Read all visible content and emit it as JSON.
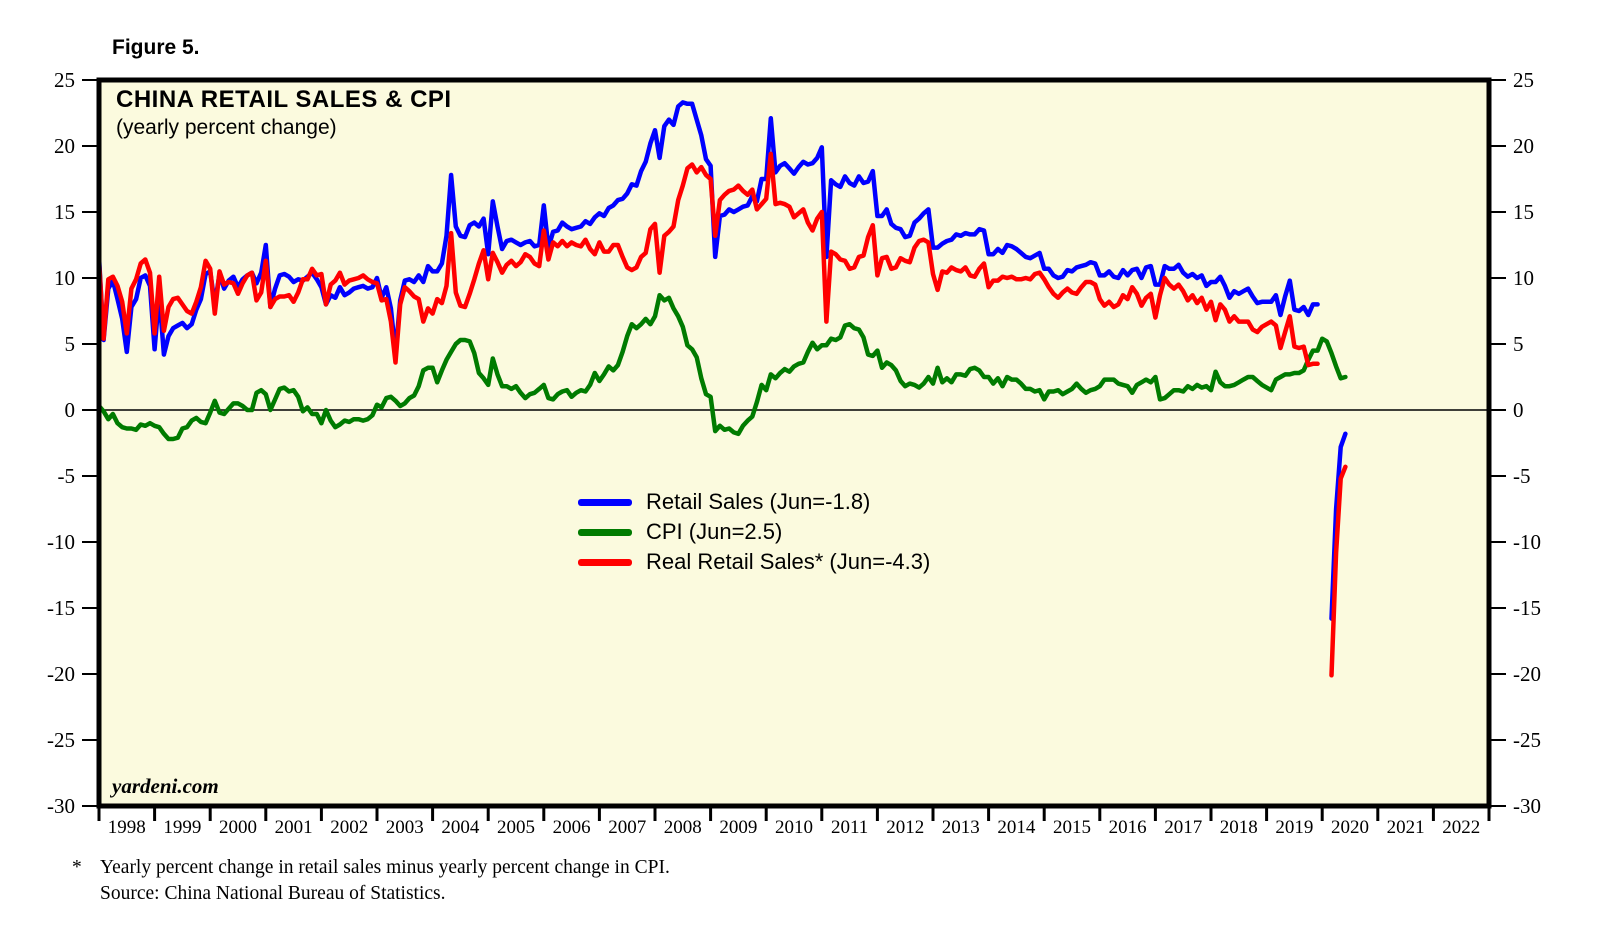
{
  "figure_label": "Figure 5.",
  "header": {
    "title": "CHINA RETAIL SALES & CPI",
    "subtitle": "(yearly percent change)"
  },
  "watermark": "yardeni.com",
  "footnote": {
    "marker": "*",
    "line1": "Yearly percent change in retail sales minus yearly percent change in CPI.",
    "line2": "Source: China National Bureau of Statistics."
  },
  "legend": [
    {
      "label": "Retail Sales (Jun=-1.8)",
      "color": "#0000ff"
    },
    {
      "label": "CPI (Jun=2.5)",
      "color": "#007b00"
    },
    {
      "label": "Real Retail Sales* (Jun=-4.3)",
      "color": "#ff0000"
    }
  ],
  "chart_data": {
    "type": "line",
    "title": "CHINA RETAIL SALES & CPI",
    "subtitle": "(yearly percent change)",
    "plot_bg": "#fbfade",
    "zero_line": true,
    "frequency": "monthly",
    "start": "1998-01",
    "end": "2020-06",
    "x_axis": {
      "start_year": 1998,
      "years_span": 25,
      "labels": [
        "1998",
        "1999",
        "2000",
        "2001",
        "2002",
        "2003",
        "2004",
        "2005",
        "2006",
        "2007",
        "2008",
        "2009",
        "2010",
        "2011",
        "2012",
        "2013",
        "2014",
        "2015",
        "2016",
        "2017",
        "2018",
        "2019",
        "2020",
        "2021",
        "2022"
      ]
    },
    "y_axis": {
      "min": -30,
      "max": 25,
      "ticks": [
        25,
        20,
        15,
        10,
        5,
        0,
        -5,
        -10,
        -15,
        -20,
        -25,
        -30
      ],
      "sides": "both"
    },
    "series": [
      {
        "name": "Retail Sales",
        "legend": "Retail Sales (Jun=-1.8)",
        "color": "#0000ff",
        "latest": {
          "month": "Jun",
          "value": -1.8
        },
        "values": [
          11.6,
          5.3,
          9.2,
          9.8,
          8.4,
          6.9,
          4.4,
          7.8,
          8.4,
          10.0,
          10.2,
          9.4,
          4.6,
          8.8,
          4.2,
          5.6,
          6.2,
          6.4,
          6.6,
          6.2,
          6.5,
          7.6,
          8.4,
          10.3,
          10.5,
          8.0,
          10.3,
          9.2,
          9.8,
          10.1,
          9.3,
          9.9,
          10.2,
          10.4,
          9.6,
          10.4,
          12.5,
          7.8,
          9.2,
          10.2,
          10.3,
          10.1,
          9.7,
          9.9,
          9.8,
          10.1,
          10.4,
          9.9,
          9.3,
          8.0,
          8.7,
          8.5,
          9.3,
          8.7,
          8.9,
          9.2,
          9.3,
          9.4,
          9.2,
          9.3,
          10.0,
          8.5,
          9.3,
          7.7,
          4.3,
          8.3,
          9.8,
          9.9,
          9.7,
          10.2,
          9.7,
          10.9,
          10.5,
          10.5,
          11.1,
          13.2,
          17.8,
          13.9,
          13.2,
          13.1,
          14.0,
          14.2,
          13.9,
          14.5,
          11.8,
          15.8,
          13.9,
          12.2,
          12.8,
          12.9,
          12.7,
          12.5,
          12.7,
          12.8,
          12.4,
          12.5,
          15.5,
          12.3,
          13.5,
          13.6,
          14.2,
          13.9,
          13.7,
          13.8,
          13.9,
          14.3,
          14.1,
          14.6,
          14.9,
          14.7,
          15.3,
          15.5,
          15.9,
          16.0,
          16.4,
          17.1,
          17.0,
          18.1,
          18.8,
          20.2,
          21.2,
          19.1,
          21.5,
          22.0,
          21.6,
          23.0,
          23.3,
          23.2,
          23.2,
          22.0,
          20.8,
          19.0,
          18.5,
          11.6,
          14.7,
          14.8,
          15.2,
          15.0,
          15.2,
          15.4,
          15.5,
          16.2,
          15.8,
          17.5,
          17.5,
          22.1,
          18.0,
          18.5,
          18.7,
          18.3,
          17.9,
          18.4,
          18.8,
          18.6,
          18.7,
          19.1,
          19.9,
          11.6,
          17.4,
          17.1,
          16.9,
          17.7,
          17.2,
          17.0,
          17.7,
          17.2,
          17.3,
          18.1,
          14.7,
          14.7,
          15.2,
          14.1,
          13.8,
          13.7,
          13.1,
          13.2,
          14.2,
          14.5,
          14.9,
          15.2,
          12.3,
          12.3,
          12.6,
          12.8,
          12.9,
          13.3,
          13.2,
          13.4,
          13.3,
          13.3,
          13.7,
          13.6,
          11.8,
          11.8,
          12.2,
          11.9,
          12.5,
          12.4,
          12.2,
          11.9,
          11.6,
          11.5,
          11.7,
          11.9,
          10.7,
          10.7,
          10.2,
          10.0,
          10.1,
          10.6,
          10.5,
          10.8,
          10.9,
          11.0,
          11.2,
          11.1,
          10.2,
          10.2,
          10.5,
          10.1,
          10.0,
          10.6,
          10.2,
          10.6,
          10.7,
          10.0,
          10.8,
          10.9,
          9.5,
          9.5,
          10.9,
          10.7,
          10.7,
          11.0,
          10.4,
          10.1,
          10.3,
          10.0,
          10.2,
          9.4,
          9.7,
          9.7,
          10.1,
          9.4,
          8.5,
          9.0,
          8.8,
          9.0,
          9.2,
          8.6,
          8.1,
          8.2,
          8.2,
          8.2,
          8.7,
          7.2,
          8.6,
          9.8,
          7.6,
          7.5,
          7.8,
          7.2,
          8.0,
          8.0,
          null,
          null,
          -15.8,
          -7.5,
          -2.8,
          -1.8
        ]
      },
      {
        "name": "CPI",
        "legend": "CPI (Jun=2.5)",
        "color": "#007b00",
        "latest": {
          "month": "Jun",
          "value": 2.5
        },
        "values": [
          0.3,
          -0.1,
          -0.7,
          -0.3,
          -1.0,
          -1.3,
          -1.4,
          -1.4,
          -1.5,
          -1.1,
          -1.2,
          -1.0,
          -1.2,
          -1.3,
          -1.8,
          -2.2,
          -2.2,
          -2.1,
          -1.4,
          -1.3,
          -0.8,
          -0.6,
          -0.9,
          -1.0,
          -0.2,
          0.7,
          -0.2,
          -0.3,
          0.1,
          0.5,
          0.5,
          0.3,
          0.0,
          0.0,
          1.3,
          1.5,
          1.2,
          0.0,
          0.8,
          1.6,
          1.7,
          1.4,
          1.5,
          1.0,
          -0.1,
          0.2,
          -0.3,
          -0.3,
          -1.0,
          0.0,
          -0.8,
          -1.3,
          -1.1,
          -0.8,
          -0.9,
          -0.7,
          -0.7,
          -0.8,
          -0.7,
          -0.4,
          0.4,
          0.2,
          0.9,
          1.0,
          0.7,
          0.3,
          0.5,
          0.9,
          1.1,
          1.8,
          3.0,
          3.2,
          3.2,
          2.1,
          3.0,
          3.8,
          4.4,
          5.0,
          5.3,
          5.3,
          5.2,
          4.3,
          2.8,
          2.4,
          1.9,
          3.9,
          2.7,
          1.8,
          1.8,
          1.6,
          1.8,
          1.3,
          0.9,
          1.2,
          1.3,
          1.6,
          1.9,
          0.9,
          0.8,
          1.2,
          1.4,
          1.5,
          1.0,
          1.3,
          1.5,
          1.4,
          1.9,
          2.8,
          2.2,
          2.7,
          3.3,
          3.0,
          3.4,
          4.4,
          5.6,
          6.5,
          6.2,
          6.5,
          6.9,
          6.5,
          7.1,
          8.7,
          8.3,
          8.5,
          7.7,
          7.1,
          6.3,
          4.9,
          4.6,
          4.0,
          2.4,
          1.2,
          1.0,
          -1.6,
          -1.2,
          -1.5,
          -1.4,
          -1.7,
          -1.8,
          -1.2,
          -0.8,
          -0.5,
          0.6,
          1.9,
          1.5,
          2.7,
          2.4,
          2.8,
          3.1,
          2.9,
          3.3,
          3.5,
          3.6,
          4.4,
          5.1,
          4.6,
          4.9,
          4.9,
          5.4,
          5.3,
          5.5,
          6.4,
          6.5,
          6.2,
          6.1,
          5.5,
          4.2,
          4.1,
          4.5,
          3.2,
          3.6,
          3.4,
          3.0,
          2.2,
          1.8,
          2.0,
          1.9,
          1.7,
          2.0,
          2.5,
          2.0,
          3.2,
          2.1,
          2.4,
          2.1,
          2.7,
          2.7,
          2.6,
          3.1,
          3.2,
          3.0,
          2.5,
          2.5,
          2.0,
          2.4,
          1.8,
          2.5,
          2.3,
          2.3,
          2.0,
          1.6,
          1.6,
          1.4,
          1.5,
          0.8,
          1.4,
          1.4,
          1.5,
          1.2,
          1.4,
          1.6,
          2.0,
          1.6,
          1.3,
          1.5,
          1.6,
          1.8,
          2.3,
          2.3,
          2.3,
          2.0,
          1.9,
          1.8,
          1.3,
          1.9,
          2.1,
          2.3,
          2.1,
          2.5,
          0.8,
          0.9,
          1.2,
          1.5,
          1.5,
          1.4,
          1.8,
          1.6,
          1.9,
          1.7,
          1.8,
          1.5,
          2.9,
          2.1,
          1.8,
          1.8,
          1.9,
          2.1,
          2.3,
          2.5,
          2.5,
          2.2,
          1.9,
          1.7,
          1.5,
          2.3,
          2.5,
          2.7,
          2.7,
          2.8,
          2.8,
          3.0,
          3.8,
          4.5,
          4.5,
          5.4,
          5.2,
          4.3,
          3.3,
          2.4,
          2.5
        ]
      },
      {
        "name": "Real Retail Sales",
        "legend": "Real Retail Sales* (Jun=-4.3)",
        "color": "#ff0000",
        "note": "retail sales yearly percent change minus CPI yearly percent change",
        "latest": {
          "month": "Jun",
          "value": -4.3
        },
        "values": [
          11.3,
          5.4,
          9.9,
          10.1,
          9.4,
          8.2,
          5.8,
          9.2,
          9.9,
          11.1,
          11.4,
          10.4,
          5.8,
          10.1,
          6.0,
          7.8,
          8.4,
          8.5,
          8.0,
          7.5,
          7.3,
          8.2,
          9.3,
          11.3,
          10.7,
          7.3,
          10.5,
          9.5,
          9.7,
          9.6,
          8.8,
          9.6,
          10.2,
          10.4,
          8.3,
          8.9,
          11.3,
          7.8,
          8.4,
          8.6,
          8.6,
          8.7,
          8.2,
          8.9,
          9.9,
          9.9,
          10.7,
          10.2,
          10.3,
          8.0,
          9.5,
          9.8,
          10.4,
          9.5,
          9.8,
          9.9,
          10.0,
          10.2,
          9.9,
          9.7,
          9.6,
          8.3,
          8.4,
          6.7,
          3.6,
          8.0,
          9.3,
          9.0,
          8.6,
          8.4,
          6.7,
          7.7,
          7.3,
          8.4,
          8.1,
          9.4,
          13.4,
          8.9,
          7.9,
          7.8,
          8.8,
          9.9,
          11.1,
          12.1,
          9.9,
          11.9,
          11.2,
          10.4,
          11.0,
          11.3,
          10.9,
          11.2,
          11.8,
          11.6,
          11.1,
          10.9,
          13.6,
          11.4,
          12.7,
          12.4,
          12.8,
          12.4,
          12.7,
          12.5,
          12.4,
          12.9,
          12.2,
          11.8,
          12.7,
          12.0,
          12.0,
          12.5,
          12.5,
          11.6,
          10.8,
          10.6,
          10.8,
          11.6,
          11.9,
          13.7,
          14.1,
          10.4,
          13.2,
          13.5,
          13.9,
          15.9,
          17.0,
          18.3,
          18.6,
          18.0,
          18.4,
          17.8,
          17.5,
          13.2,
          15.9,
          16.3,
          16.6,
          16.7,
          17.0,
          16.6,
          16.3,
          16.7,
          15.2,
          15.6,
          16.0,
          19.4,
          15.6,
          15.7,
          15.6,
          15.4,
          14.6,
          14.9,
          15.2,
          14.2,
          13.6,
          14.5,
          15.0,
          6.7,
          12.0,
          11.8,
          11.4,
          11.3,
          10.7,
          10.8,
          11.6,
          11.7,
          13.1,
          14.0,
          10.2,
          11.5,
          11.6,
          10.7,
          10.8,
          11.5,
          11.3,
          11.2,
          12.3,
          12.8,
          12.9,
          12.7,
          10.3,
          9.1,
          10.5,
          10.4,
          10.8,
          10.6,
          10.5,
          10.8,
          10.2,
          10.1,
          10.7,
          11.1,
          9.3,
          9.8,
          9.8,
          10.1,
          10.0,
          10.1,
          9.9,
          9.9,
          10.0,
          9.9,
          10.3,
          10.4,
          9.9,
          9.3,
          8.8,
          8.5,
          8.9,
          9.2,
          8.9,
          8.8,
          9.3,
          9.7,
          9.7,
          9.5,
          8.4,
          7.9,
          8.2,
          7.8,
          8.0,
          8.7,
          8.4,
          9.3,
          8.8,
          7.9,
          8.5,
          8.8,
          7.0,
          8.7,
          10.0,
          9.5,
          9.2,
          9.5,
          9.0,
          8.3,
          8.7,
          8.1,
          8.5,
          7.6,
          8.2,
          6.8,
          8.0,
          7.6,
          6.7,
          7.1,
          6.7,
          6.7,
          6.7,
          6.1,
          5.9,
          6.3,
          6.5,
          6.7,
          6.4,
          4.7,
          5.9,
          7.1,
          4.8,
          4.7,
          4.8,
          3.4,
          3.5,
          3.5,
          null,
          null,
          -20.1,
          -10.8,
          -5.2,
          -4.3
        ]
      }
    ]
  }
}
